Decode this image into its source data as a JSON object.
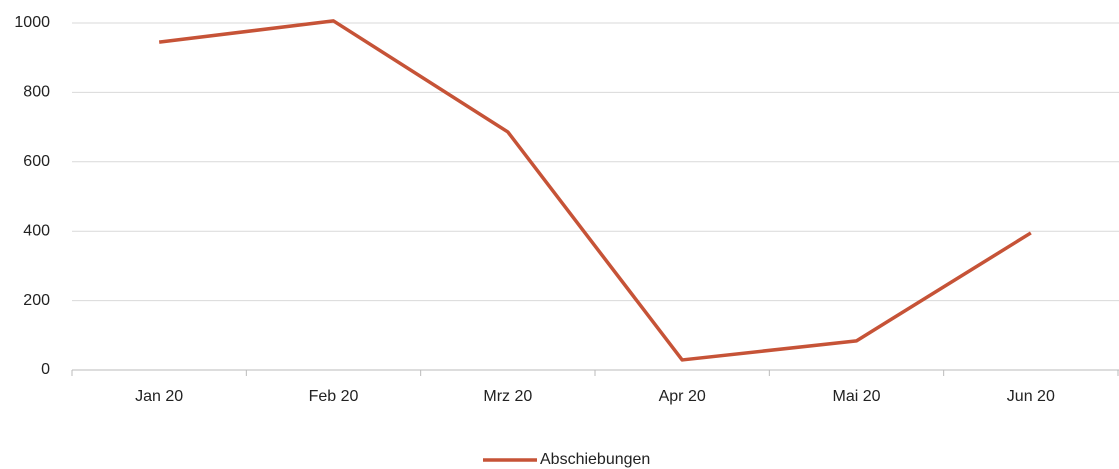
{
  "chart_data": {
    "type": "line",
    "categories": [
      "Jan 20",
      "Feb 20",
      "Mrz 20",
      "Apr 20",
      "Mai 20",
      "Jun 20"
    ],
    "series": [
      {
        "name": "Abschiebungen",
        "color": "#c65337",
        "values": [
          945,
          1006,
          686,
          29,
          84,
          395
        ]
      }
    ],
    "ylim": [
      0,
      1000
    ],
    "yticks": [
      0,
      200,
      400,
      600,
      800,
      1000
    ],
    "grid": true,
    "legend": "bottom"
  }
}
